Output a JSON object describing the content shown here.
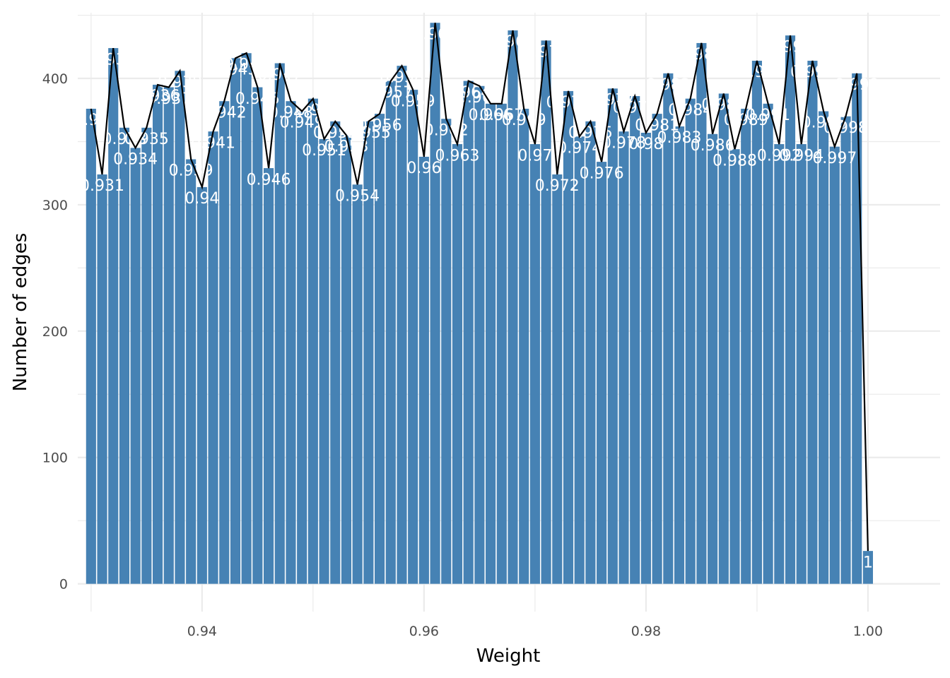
{
  "chart_data": {
    "type": "bar",
    "xlabel": "Weight",
    "ylabel": "Number of edges",
    "xlim": [
      0.9288,
      1.0065
    ],
    "ylim": [
      -22,
      452
    ],
    "x_ticks": [
      0.94,
      0.96,
      0.98,
      1.0
    ],
    "x_tick_labels": [
      "0.94",
      "0.96",
      "0.98",
      "1.00"
    ],
    "y_ticks": [
      0,
      100,
      200,
      300,
      400
    ],
    "y_tick_labels": [
      "0",
      "100",
      "200",
      "300",
      "400"
    ],
    "grid": true,
    "colors": {
      "bar": "#4682b4",
      "line": "#000000",
      "grid": "#ebebeb",
      "label": "#ffffff"
    },
    "x": [
      0.93,
      0.931,
      0.932,
      0.933,
      0.934,
      0.935,
      0.936,
      0.937,
      0.938,
      0.939,
      0.94,
      0.941,
      0.942,
      0.943,
      0.944,
      0.945,
      0.946,
      0.947,
      0.948,
      0.949,
      0.95,
      0.951,
      0.952,
      0.953,
      0.954,
      0.955,
      0.956,
      0.957,
      0.958,
      0.959,
      0.96,
      0.961,
      0.962,
      0.963,
      0.964,
      0.965,
      0.966,
      0.967,
      0.968,
      0.969,
      0.97,
      0.971,
      0.972,
      0.973,
      0.974,
      0.975,
      0.976,
      0.977,
      0.978,
      0.979,
      0.98,
      0.981,
      0.982,
      0.983,
      0.984,
      0.985,
      0.986,
      0.987,
      0.988,
      0.989,
      0.99,
      0.991,
      0.992,
      0.993,
      0.994,
      0.995,
      0.996,
      0.997,
      0.998,
      0.999,
      1.0
    ],
    "values": [
      376,
      324,
      424,
      361,
      345,
      361,
      395,
      393,
      406,
      336,
      314,
      358,
      382,
      416,
      420,
      393,
      329,
      412,
      382,
      374,
      384,
      352,
      366,
      355,
      316,
      366,
      372,
      398,
      410,
      391,
      338,
      444,
      368,
      348,
      398,
      394,
      380,
      380,
      438,
      376,
      348,
      430,
      324,
      390,
      354,
      366,
      334,
      392,
      358,
      386,
      357,
      372,
      404,
      362,
      384,
      428,
      356,
      388,
      344,
      376,
      414,
      380,
      348,
      434,
      348,
      414,
      374,
      346,
      370,
      404,
      26
    ],
    "labels": [
      "0.93",
      "0.931",
      "0.932",
      "0.933",
      "0.934",
      "0.935",
      "0.936",
      "0.937",
      "0.938",
      "0.939",
      "0.94",
      "0.941",
      "0.942",
      "0.943",
      "0.944",
      "0.945",
      "0.946",
      "0.947",
      "0.948",
      "0.949",
      "0.95",
      "0.951",
      "0.952",
      "0.953",
      "0.954",
      "0.955",
      "0.956",
      "0.957",
      "0.958",
      "0.959",
      "0.96",
      "0.961",
      "0.962",
      "0.963",
      "0.964",
      "0.965",
      "0.966",
      "0.967",
      "0.968",
      "0.969",
      "0.97",
      "0.971",
      "0.972",
      "0.973",
      "0.974",
      "0.975",
      "0.976",
      "0.977",
      "0.978",
      "0.979",
      "0.98",
      "0.981",
      "0.982",
      "0.983",
      "0.984",
      "0.985",
      "0.986",
      "0.987",
      "0.988",
      "0.989",
      "0.99",
      "0.991",
      "0.992",
      "0.993",
      "0.994",
      "0.995",
      "0.996",
      "0.997",
      "0.998",
      "0.999",
      "1"
    ]
  }
}
